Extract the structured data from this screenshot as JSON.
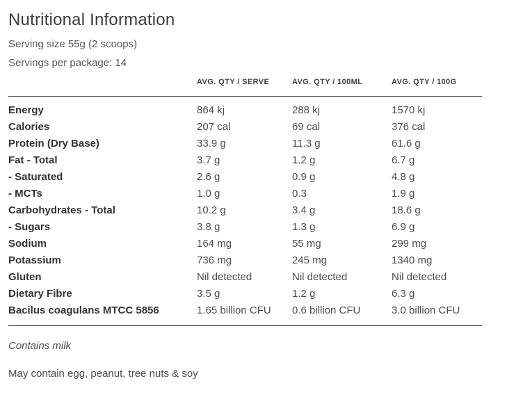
{
  "page": {
    "title": "Nutritional Information",
    "serving_size": "Serving size 55g (2 scoops)",
    "servings_per_package": "Servings per package: 14"
  },
  "table": {
    "headers": [
      "AVG. QTY / SERVE",
      "AVG. QTY / 100ML",
      "AVG. QTY / 100G"
    ],
    "rows": [
      {
        "label": "Energy",
        "serve": "864 kj",
        "per_100ml": "288 kj",
        "per_100g": "1570 kj"
      },
      {
        "label": "Calories",
        "serve": "207 cal",
        "per_100ml": "69 cal",
        "per_100g": "376 cal"
      },
      {
        "label": "Protein (Dry Base)",
        "serve": "33.9 g",
        "per_100ml": "11.3 g",
        "per_100g": "61.6 g"
      },
      {
        "label": "Fat - Total",
        "serve": "3.7 g",
        "per_100ml": "1.2 g",
        "per_100g": "6.7 g"
      },
      {
        "label": "- Saturated",
        "serve": "2.6 g",
        "per_100ml": "0.9 g",
        "per_100g": "4.8 g"
      },
      {
        "label": "- MCTs",
        "serve": "1.0 g",
        "per_100ml": "0.3",
        "per_100g": "1.9 g"
      },
      {
        "label": "Carbohydrates - Total",
        "serve": "10.2 g",
        "per_100ml": "3.4 g",
        "per_100g": "18.6 g"
      },
      {
        "label": "- Sugars",
        "serve": "3.8 g",
        "per_100ml": "1.3 g",
        "per_100g": "6.9 g"
      },
      {
        "label": "Sodium",
        "serve": "164 mg",
        "per_100ml": "55 mg",
        "per_100g": "299 mg"
      },
      {
        "label": "Potassium",
        "serve": "736 mg",
        "per_100ml": "245 mg",
        "per_100g": "1340 mg"
      },
      {
        "label": "Gluten",
        "serve": "Nil detected",
        "per_100ml": "Nil detected",
        "per_100g": "Nil detected"
      },
      {
        "label": "Dietary Fibre",
        "serve": "3.5 g",
        "per_100ml": "1.2 g",
        "per_100g": "6.3 g"
      },
      {
        "label": "Bacilus coagulans MTCC 5856",
        "serve": "1.65 billion CFU",
        "per_100ml": "0.6 billion CFU",
        "per_100g": "3.0 billion CFU"
      }
    ]
  },
  "footer": {
    "contains": "Contains milk",
    "may_contain": "May contain egg, peanut, tree nuts & soy"
  },
  "colors": {
    "background": "#ffffff",
    "title_text": "#3c3c3c",
    "label_text": "#333333",
    "value_text": "#4b4b4b",
    "muted_text": "#575757",
    "rule": "#414141"
  }
}
